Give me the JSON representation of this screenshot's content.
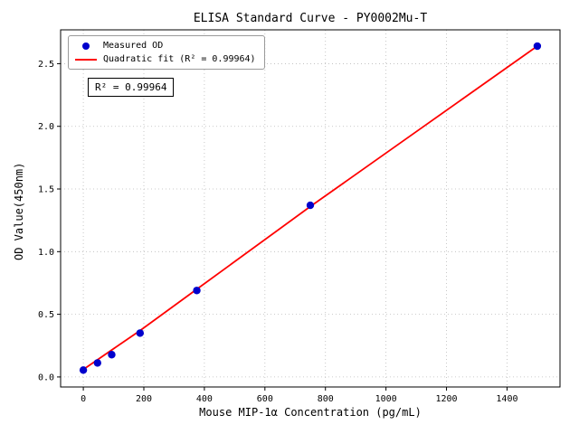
{
  "figure": {
    "title": "ELISA Standard Curve - PY0002Mu-T"
  },
  "chart_data": {
    "type": "scatter",
    "title": "ELISA Standard Curve - PY0002Mu-T",
    "xlabel": "Mouse MIP-1α Concentration (pg/mL)",
    "ylabel": "OD Value(450nm)",
    "xlim": [
      -75,
      1575
    ],
    "ylim": [
      -0.08,
      2.77
    ],
    "xticks": [
      0,
      200,
      400,
      600,
      800,
      1000,
      1200,
      1400
    ],
    "yticks": [
      0,
      0.5,
      1,
      1.5,
      2,
      2.5
    ],
    "grid": true,
    "legend_position": "upper left",
    "annotation": "R² = 0.99964",
    "colors": {
      "points": "#0000cd",
      "fit": "#ff0000",
      "grid": "#bbbbbb",
      "axis": "#000000"
    },
    "series": [
      {
        "name": "Measured OD",
        "type": "scatter",
        "color": "#0000cd",
        "x": [
          0,
          46.9,
          93.8,
          187.5,
          375,
          750,
          1500
        ],
        "y": [
          0.055,
          0.112,
          0.178,
          0.35,
          0.69,
          1.37,
          2.64
        ]
      },
      {
        "name": "Quadratic fit (R² = 0.99964)",
        "type": "line",
        "color": "#ff0000",
        "x": [
          0,
          187.5,
          375,
          750,
          1125,
          1500
        ],
        "y": [
          0.06,
          0.37,
          0.7,
          1.36,
          2.0,
          2.64
        ]
      }
    ]
  }
}
